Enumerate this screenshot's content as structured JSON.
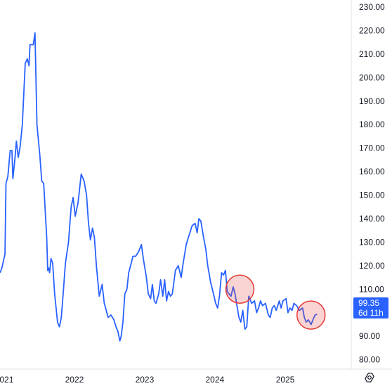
{
  "chart_data": {
    "type": "line",
    "y_ticks": [
      "230.00",
      "220.00",
      "210.00",
      "200.00",
      "190.00",
      "180.00",
      "170.00",
      "160.00",
      "150.00",
      "140.00",
      "130.00",
      "120.00",
      "110.00",
      "100.00",
      "90.00",
      "80.00"
    ],
    "y_tick_values": [
      230,
      220,
      210,
      200,
      190,
      180,
      170,
      160,
      150,
      140,
      130,
      120,
      110,
      100,
      90,
      80
    ],
    "x_ticks": [
      "2021",
      "2022",
      "2023",
      "2024",
      "2025"
    ],
    "x_tick_values": [
      "2021-01-01",
      "2022-01-01",
      "2023-01-01",
      "2024-01-01",
      "2025-01-01"
    ],
    "ylim": [
      76,
      233
    ],
    "xlim": [
      "2020-12-10",
      "2025-12-10"
    ],
    "grid": false,
    "line_color": "#2962ff",
    "series": [
      {
        "values": [
          [
            "2020-12-10",
            117
          ],
          [
            "2020-12-20",
            119
          ],
          [
            "2021-01-05",
            125
          ],
          [
            "2021-01-10",
            155
          ],
          [
            "2021-01-20",
            158
          ],
          [
            "2021-02-01",
            169
          ],
          [
            "2021-02-10",
            169
          ],
          [
            "2021-02-15",
            157
          ],
          [
            "2021-02-25",
            165
          ],
          [
            "2021-03-05",
            173
          ],
          [
            "2021-03-15",
            166
          ],
          [
            "2021-03-25",
            171
          ],
          [
            "2021-04-05",
            180
          ],
          [
            "2021-04-20",
            206
          ],
          [
            "2021-05-01",
            208
          ],
          [
            "2021-05-10",
            205
          ],
          [
            "2021-05-15",
            214
          ],
          [
            "2021-06-01",
            214
          ],
          [
            "2021-06-10",
            219
          ],
          [
            "2021-06-20",
            180
          ],
          [
            "2021-07-05",
            167
          ],
          [
            "2021-07-15",
            156
          ],
          [
            "2021-07-25",
            155
          ],
          [
            "2021-08-10",
            132
          ],
          [
            "2021-08-15",
            118
          ],
          [
            "2021-08-20",
            119
          ],
          [
            "2021-08-25",
            117
          ],
          [
            "2021-09-01",
            123
          ],
          [
            "2021-09-10",
            121
          ],
          [
            "2021-09-20",
            108
          ],
          [
            "2021-10-05",
            96
          ],
          [
            "2021-10-15",
            94
          ],
          [
            "2021-10-25",
            98
          ],
          [
            "2021-11-05",
            110
          ],
          [
            "2021-11-15",
            121
          ],
          [
            "2021-12-01",
            130
          ],
          [
            "2021-12-15",
            145
          ],
          [
            "2021-12-25",
            149
          ],
          [
            "2022-01-05",
            141
          ],
          [
            "2022-01-20",
            147
          ],
          [
            "2022-02-05",
            159
          ],
          [
            "2022-02-20",
            156
          ],
          [
            "2022-03-05",
            150
          ],
          [
            "2022-03-15",
            138
          ],
          [
            "2022-03-25",
            131
          ],
          [
            "2022-04-05",
            136
          ],
          [
            "2022-04-15",
            132
          ],
          [
            "2022-04-25",
            120
          ],
          [
            "2022-05-10",
            107
          ],
          [
            "2022-05-25",
            112
          ],
          [
            "2022-06-05",
            104
          ],
          [
            "2022-06-15",
            101
          ],
          [
            "2022-06-25",
            98
          ],
          [
            "2022-07-10",
            99
          ],
          [
            "2022-07-25",
            97
          ],
          [
            "2022-08-05",
            94
          ],
          [
            "2022-08-15",
            92
          ],
          [
            "2022-08-25",
            88
          ],
          [
            "2022-09-01",
            90
          ],
          [
            "2022-09-10",
            96
          ],
          [
            "2022-09-20",
            108
          ],
          [
            "2022-10-01",
            110
          ],
          [
            "2022-10-10",
            117
          ],
          [
            "2022-10-20",
            120
          ],
          [
            "2022-11-01",
            124
          ],
          [
            "2022-11-15",
            124
          ],
          [
            "2022-12-01",
            126
          ],
          [
            "2022-12-15",
            129
          ],
          [
            "2022-12-25",
            123
          ],
          [
            "2023-01-10",
            115
          ],
          [
            "2023-01-20",
            108
          ],
          [
            "2023-02-01",
            106
          ],
          [
            "2023-02-10",
            112
          ],
          [
            "2023-02-20",
            105
          ],
          [
            "2023-03-01",
            104
          ],
          [
            "2023-03-15",
            108
          ],
          [
            "2023-03-25",
            114
          ],
          [
            "2023-04-05",
            107
          ],
          [
            "2023-04-15",
            114
          ],
          [
            "2023-04-25",
            105
          ],
          [
            "2023-05-05",
            109
          ],
          [
            "2023-05-15",
            107
          ],
          [
            "2023-05-25",
            108
          ],
          [
            "2023-06-10",
            118
          ],
          [
            "2023-06-25",
            120
          ],
          [
            "2023-07-10",
            115
          ],
          [
            "2023-07-20",
            121
          ],
          [
            "2023-08-05",
            129
          ],
          [
            "2023-08-20",
            133
          ],
          [
            "2023-09-05",
            137
          ],
          [
            "2023-09-20",
            138
          ],
          [
            "2023-10-01",
            134
          ],
          [
            "2023-10-10",
            140
          ],
          [
            "2023-10-20",
            139
          ],
          [
            "2023-11-01",
            133
          ],
          [
            "2023-11-15",
            127
          ],
          [
            "2023-11-25",
            120
          ],
          [
            "2023-12-10",
            113
          ],
          [
            "2023-12-25",
            108
          ],
          [
            "2024-01-05",
            104
          ],
          [
            "2024-01-15",
            102
          ],
          [
            "2024-01-25",
            107
          ],
          [
            "2024-02-05",
            117
          ],
          [
            "2024-02-15",
            116
          ],
          [
            "2024-02-25",
            118
          ],
          [
            "2024-03-05",
            109
          ],
          [
            "2024-03-15",
            108
          ],
          [
            "2024-03-25",
            107
          ],
          [
            "2024-04-05",
            111
          ],
          [
            "2024-04-15",
            108
          ],
          [
            "2024-04-25",
            103
          ],
          [
            "2024-05-05",
            98
          ],
          [
            "2024-05-15",
            96
          ],
          [
            "2024-05-25",
            101
          ],
          [
            "2024-06-05",
            93
          ],
          [
            "2024-06-15",
            94
          ],
          [
            "2024-06-25",
            107
          ],
          [
            "2024-07-10",
            104
          ],
          [
            "2024-07-25",
            105
          ],
          [
            "2024-08-05",
            100
          ],
          [
            "2024-08-15",
            102
          ],
          [
            "2024-08-25",
            105
          ],
          [
            "2024-09-05",
            103
          ],
          [
            "2024-09-20",
            104
          ],
          [
            "2024-10-05",
            99
          ],
          [
            "2024-10-15",
            98
          ],
          [
            "2024-10-25",
            102
          ],
          [
            "2024-11-05",
            103
          ],
          [
            "2024-11-15",
            101
          ],
          [
            "2024-12-01",
            105
          ],
          [
            "2024-12-10",
            102
          ],
          [
            "2024-12-20",
            105
          ],
          [
            "2025-01-05",
            106
          ],
          [
            "2025-01-15",
            100
          ],
          [
            "2025-01-25",
            102
          ],
          [
            "2025-02-05",
            101
          ],
          [
            "2025-02-15",
            104
          ],
          [
            "2025-03-01",
            103
          ],
          [
            "2025-03-15",
            101
          ],
          [
            "2025-04-01",
            102
          ],
          [
            "2025-04-10",
            98
          ],
          [
            "2025-04-20",
            96
          ],
          [
            "2025-05-01",
            97
          ],
          [
            "2025-05-15",
            95
          ],
          [
            "2025-05-25",
            97
          ],
          [
            "2025-06-05",
            99
          ],
          [
            "2025-06-15",
            99.35
          ]
        ]
      }
    ],
    "annotations": [
      {
        "type": "circle",
        "x": "2024-05-10",
        "y": 110,
        "color": "#e53935",
        "fill": "rgba(229,57,53,0.22)"
      },
      {
        "type": "circle",
        "x": "2025-05-15",
        "y": 99,
        "color": "#e53935",
        "fill": "rgba(229,57,53,0.22)"
      }
    ],
    "last_price": {
      "value": "99.35",
      "countdown": "6d 11h"
    }
  },
  "settings_icon": "gear-icon"
}
